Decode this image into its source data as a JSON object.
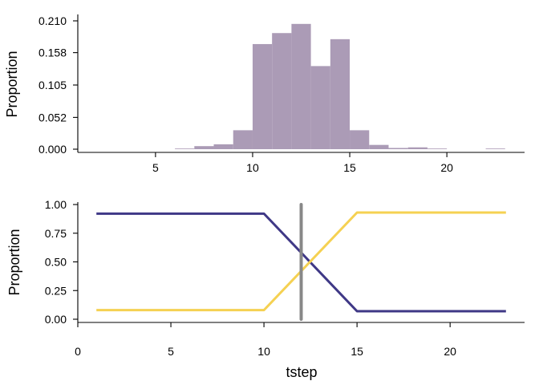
{
  "chart_data": [
    {
      "type": "bar",
      "subtype": "histogram",
      "ylabel": "Proportion",
      "xlabel": "",
      "bin_width": 1,
      "bins": [
        {
          "x0": 6,
          "x1": 7,
          "value": 0.001
        },
        {
          "x0": 7,
          "x1": 8,
          "value": 0.005
        },
        {
          "x0": 8,
          "x1": 9,
          "value": 0.008
        },
        {
          "x0": 9,
          "x1": 10,
          "value": 0.031
        },
        {
          "x0": 10,
          "x1": 11,
          "value": 0.172
        },
        {
          "x0": 11,
          "x1": 12,
          "value": 0.19
        },
        {
          "x0": 12,
          "x1": 13,
          "value": 0.205
        },
        {
          "x0": 13,
          "x1": 14,
          "value": 0.136
        },
        {
          "x0": 14,
          "x1": 15,
          "value": 0.18
        },
        {
          "x0": 15,
          "x1": 16,
          "value": 0.031
        },
        {
          "x0": 16,
          "x1": 17,
          "value": 0.007
        },
        {
          "x0": 17,
          "x1": 18,
          "value": 0.002
        },
        {
          "x0": 18,
          "x1": 19,
          "value": 0.003
        },
        {
          "x0": 19,
          "x1": 20,
          "value": 0.001
        },
        {
          "x0": 22,
          "x1": 23,
          "value": 0.0008
        }
      ],
      "xlim": [
        1,
        24
      ],
      "ylim": [
        0,
        0.21
      ],
      "xticks": [
        "5",
        "10",
        "15",
        "20"
      ],
      "yticks": [
        "0.000",
        "0.052",
        "0.105",
        "0.158",
        "0.210"
      ],
      "bar_color": "#ab9bb6",
      "grid": false
    },
    {
      "type": "line",
      "xlabel": "tstep",
      "ylabel": "Proportion",
      "xlim": [
        0,
        24
      ],
      "ylim": [
        0,
        1
      ],
      "xticks": [
        "0",
        "5",
        "10",
        "15",
        "20"
      ],
      "yticks": [
        "0.00",
        "0.25",
        "0.50",
        "0.75",
        "1.00"
      ],
      "series": [
        {
          "color": "#3f3886",
          "x": [
            1,
            10,
            15,
            23
          ],
          "y": [
            0.92,
            0.92,
            0.07,
            0.07
          ]
        },
        {
          "color": "#f5d152",
          "x": [
            1,
            10,
            15,
            23
          ],
          "y": [
            0.08,
            0.08,
            0.93,
            0.93
          ]
        }
      ],
      "vline": {
        "x": 12,
        "y0": 0,
        "y1": 1,
        "color": "#888888"
      },
      "grid": false
    }
  ]
}
